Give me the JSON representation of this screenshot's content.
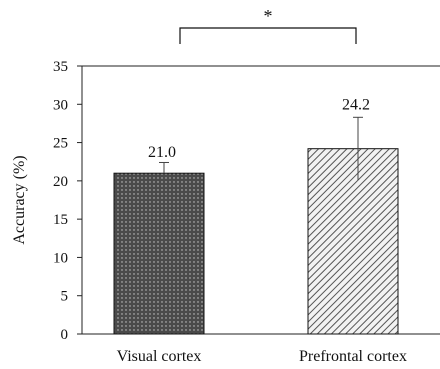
{
  "chart_data": {
    "type": "bar",
    "categories": [
      "Visual cortex",
      "Prefrontal cortex"
    ],
    "values": [
      21.0,
      24.2
    ],
    "value_labels": [
      "21.0",
      "24.2"
    ],
    "error_high": [
      22.4,
      28.3
    ],
    "error_low": [
      21.0,
      20.1
    ],
    "patterns": [
      "dark-dotted",
      "diagonal-hatched"
    ],
    "title": "",
    "xlabel": "",
    "ylabel": "Accuracy (%)",
    "ylim": [
      0,
      35
    ],
    "yticks": [
      0,
      5,
      10,
      15,
      20,
      25,
      30,
      35
    ],
    "significance": {
      "between": [
        0,
        1
      ],
      "label": "*"
    },
    "grid": false,
    "legend": "none",
    "colors": {
      "bar1_fill": "#4a4a4a",
      "bar1_dots": "#cfcfcf",
      "bar2_fill": "#f2f2f2",
      "bar2_hatch": "#555555",
      "axis": "#222222"
    }
  }
}
